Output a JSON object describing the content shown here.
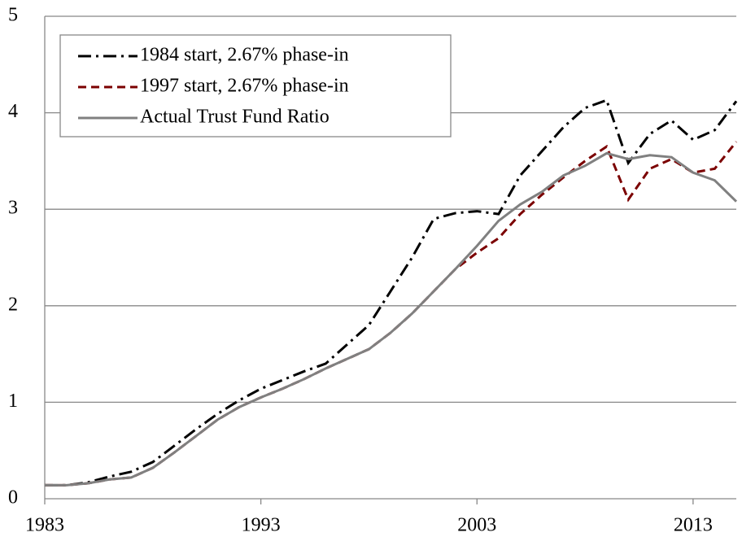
{
  "chart_data": {
    "type": "line",
    "x": [
      1983,
      1984,
      1985,
      1986,
      1987,
      1988,
      1989,
      1990,
      1991,
      1992,
      1993,
      1994,
      1995,
      1996,
      1997,
      1998,
      1999,
      2000,
      2001,
      2002,
      2003,
      2004,
      2005,
      2006,
      2007,
      2008,
      2009,
      2010,
      2011,
      2012,
      2013,
      2014,
      2015
    ],
    "series": [
      {
        "name": "1984 start, 2.67% phase-in",
        "color": "#000000",
        "dash": "16,6,3,6",
        "values": [
          0.14,
          0.14,
          0.17,
          0.23,
          0.28,
          0.38,
          0.55,
          0.72,
          0.88,
          1.02,
          1.14,
          1.23,
          1.32,
          1.4,
          1.6,
          1.8,
          2.15,
          2.5,
          2.9,
          2.96,
          2.98,
          2.95,
          3.35,
          3.6,
          3.85,
          4.05,
          4.13,
          3.48,
          3.78,
          3.92,
          3.72,
          3.82,
          4.12
        ]
      },
      {
        "name": "1997 start, 2.67% phase-in",
        "color": "#7b0000",
        "dash": "10,6",
        "values": [
          0.14,
          0.14,
          0.16,
          0.2,
          0.22,
          0.32,
          0.48,
          0.65,
          0.82,
          0.95,
          1.05,
          1.14,
          1.24,
          1.35,
          1.45,
          1.55,
          1.72,
          1.92,
          2.15,
          2.38,
          2.55,
          2.7,
          2.95,
          3.15,
          3.33,
          3.5,
          3.65,
          3.1,
          3.42,
          3.52,
          3.38,
          3.42,
          3.7
        ]
      },
      {
        "name": "Actual Trust Fund Ratio",
        "color": "#808080",
        "dash": "",
        "values": [
          0.14,
          0.14,
          0.16,
          0.2,
          0.22,
          0.32,
          0.48,
          0.65,
          0.82,
          0.95,
          1.05,
          1.14,
          1.24,
          1.35,
          1.45,
          1.55,
          1.72,
          1.92,
          2.15,
          2.38,
          2.62,
          2.88,
          3.05,
          3.18,
          3.35,
          3.45,
          3.58,
          3.52,
          3.56,
          3.54,
          3.38,
          3.3,
          3.08
        ]
      }
    ],
    "xlim": [
      1983,
      2015
    ],
    "xticks": [
      1983,
      1993,
      2003,
      2013
    ],
    "ylim": [
      0,
      5
    ],
    "yticks": [
      0,
      1,
      2,
      3,
      4,
      5
    ],
    "grid": true,
    "legend": "top-left"
  }
}
